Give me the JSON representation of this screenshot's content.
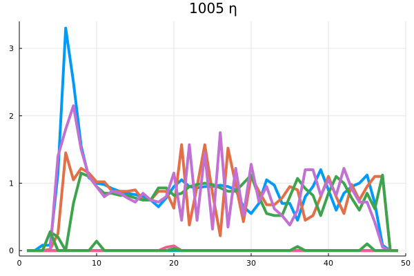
{
  "chart_data": {
    "type": "line",
    "title": "1005 η",
    "xlabel": "",
    "ylabel": "",
    "xlim": [
      0,
      50
    ],
    "ylim": [
      -0.08,
      3.4
    ],
    "x_ticks": [
      0,
      10,
      20,
      30,
      40,
      50
    ],
    "y_ticks": [
      0,
      1,
      2,
      3
    ],
    "grid": true,
    "legend": "none",
    "series": [
      {
        "color": "#009af9",
        "x": [
          1,
          2,
          3,
          4,
          5,
          6,
          7,
          8,
          9,
          10,
          11,
          12,
          13,
          14,
          15,
          16,
          17,
          18,
          19,
          20,
          21,
          22,
          23,
          24,
          25,
          26,
          27,
          28,
          29,
          30,
          31,
          32,
          33,
          34,
          35,
          36,
          37,
          38,
          39,
          40,
          41,
          42,
          43,
          44,
          45,
          46,
          47,
          48,
          49
        ],
        "values": [
          0,
          0,
          0.08,
          0.08,
          1.15,
          3.3,
          2.5,
          1.55,
          1.08,
          1.0,
          0.98,
          0.92,
          0.88,
          0.85,
          0.83,
          0.8,
          0.75,
          0.65,
          0.78,
          0.95,
          1.05,
          0.95,
          0.93,
          0.95,
          0.95,
          0.97,
          0.95,
          0.9,
          0.65,
          0.55,
          0.7,
          1.05,
          0.97,
          0.7,
          0.7,
          0.45,
          0.8,
          0.95,
          1.2,
          0.9,
          0.6,
          0.85,
          0.95,
          1.0,
          1.12,
          0.7,
          0.08,
          0,
          0
        ]
      },
      {
        "color": "#e26f46",
        "x": [
          1,
          2,
          3,
          4,
          5,
          6,
          7,
          8,
          9,
          10,
          11,
          12,
          13,
          14,
          15,
          16,
          17,
          18,
          19,
          20,
          21,
          22,
          23,
          24,
          25,
          26,
          27,
          28,
          29,
          30,
          31,
          32,
          33,
          34,
          35,
          36,
          37,
          38,
          39,
          40,
          41,
          42,
          43,
          44,
          45,
          46,
          47,
          48,
          49
        ],
        "values": [
          0,
          0,
          0,
          0.02,
          0.25,
          1.45,
          1.05,
          1.22,
          1.15,
          1.02,
          1.02,
          0.88,
          0.88,
          0.88,
          0.9,
          0.75,
          0.75,
          0.88,
          0.88,
          0.63,
          1.57,
          0.38,
          0.95,
          1.57,
          0.85,
          0.22,
          1.52,
          0.98,
          0.43,
          1.1,
          0.88,
          0.68,
          0.68,
          0.78,
          0.95,
          0.9,
          0.45,
          0.52,
          0.8,
          1.1,
          0.8,
          0.55,
          0.98,
          0.75,
          0.95,
          1.1,
          1.1,
          0,
          0
        ]
      },
      {
        "color": "#3da44d",
        "x": [
          1,
          2,
          3,
          4,
          5,
          6,
          7,
          8,
          9,
          10,
          11,
          12,
          13,
          14,
          15,
          16,
          17,
          18,
          19,
          20,
          21,
          22,
          23,
          24,
          25,
          26,
          27,
          28,
          29,
          30,
          31,
          32,
          33,
          34,
          35,
          36,
          37,
          38,
          39,
          40,
          41,
          42,
          43,
          44,
          45,
          46,
          47,
          48,
          49
        ],
        "values": [
          0,
          0,
          0,
          0.28,
          0.2,
          0.0,
          0.7,
          1.15,
          1.1,
          0.95,
          0.85,
          0.85,
          0.82,
          0.82,
          0.78,
          0.75,
          0.75,
          0.93,
          0.93,
          0.82,
          0.85,
          0.95,
          0.98,
          1.0,
          0.98,
          0.93,
          0.88,
          0.88,
          1.0,
          1.12,
          0.8,
          0.55,
          0.52,
          0.52,
          0.8,
          1.07,
          0.92,
          0.82,
          0.52,
          0.85,
          1.1,
          1.0,
          0.78,
          0.6,
          0.85,
          0.62,
          1.12,
          0,
          0
        ]
      },
      {
        "color": "#c271d2",
        "x": [
          1,
          2,
          3,
          4,
          5,
          6,
          7,
          8,
          9,
          10,
          11,
          12,
          13,
          14,
          15,
          16,
          17,
          18,
          19,
          20,
          21,
          22,
          23,
          24,
          25,
          26,
          27,
          28,
          29,
          30,
          31,
          32,
          33,
          34,
          35,
          36,
          37,
          38,
          39,
          40,
          41,
          42,
          43,
          44,
          45,
          46,
          47,
          48,
          49
        ],
        "values": [
          0,
          0,
          0,
          0,
          1.4,
          1.8,
          2.15,
          1.5,
          1.1,
          0.95,
          0.8,
          0.88,
          0.85,
          0.78,
          0.72,
          0.85,
          0.75,
          0.72,
          0.8,
          1.15,
          0.45,
          1.57,
          0.45,
          1.45,
          0.32,
          1.75,
          0.35,
          1.22,
          0.52,
          1.28,
          0.73,
          0.95,
          0.62,
          0.52,
          0.38,
          0.6,
          1.2,
          1.2,
          0.82,
          1.05,
          0.82,
          1.22,
          0.92,
          0.72,
          0.72,
          0.42,
          0.05,
          0,
          0
        ]
      },
      {
        "color": "#ac8d18",
        "x": [
          1,
          2,
          3,
          4,
          5,
          6,
          7,
          8,
          9,
          10,
          11,
          12,
          13,
          14,
          15,
          16,
          17,
          18,
          19,
          20,
          21,
          22,
          23,
          24,
          25,
          26,
          27,
          28,
          29,
          30,
          31,
          32,
          33,
          34,
          35,
          36,
          37,
          38,
          39,
          40,
          41,
          42,
          43,
          44,
          45,
          46,
          47,
          48,
          49
        ],
        "values": [
          0,
          0,
          0,
          0,
          0,
          0,
          0,
          0,
          0,
          0,
          0,
          0,
          0,
          0,
          0,
          0,
          0,
          0,
          0,
          0,
          0,
          0,
          0,
          0,
          0,
          0,
          0,
          0,
          0,
          0,
          0,
          0,
          0,
          0,
          0,
          0,
          0,
          0,
          0,
          0,
          0,
          0,
          0,
          0,
          0,
          0,
          0,
          0,
          0
        ]
      },
      {
        "color": "#00a9ad",
        "x": [
          1,
          2,
          3,
          4,
          5,
          6,
          7,
          8,
          9,
          10,
          11,
          12,
          13,
          14,
          15,
          16,
          17,
          18,
          19,
          20,
          21,
          22,
          23,
          24,
          25,
          26,
          27,
          28,
          29,
          30,
          31,
          32,
          33,
          34,
          35,
          36,
          37,
          38,
          39,
          40,
          41,
          42,
          43,
          44,
          45,
          46,
          47,
          48,
          49
        ],
        "values": [
          0,
          0,
          0,
          0,
          0,
          0,
          0,
          0,
          0,
          0,
          0,
          0,
          0,
          0,
          0,
          0,
          0,
          0,
          0,
          0,
          0,
          0,
          0,
          0,
          0,
          0,
          0,
          0,
          0,
          0,
          0,
          0,
          0,
          0,
          0,
          0,
          0,
          0,
          0,
          0,
          0,
          0,
          0,
          0,
          0,
          0,
          0,
          0,
          0
        ]
      },
      {
        "color": "#ed5d92",
        "x": [
          1,
          2,
          3,
          4,
          5,
          6,
          7,
          8,
          9,
          10,
          11,
          12,
          13,
          14,
          15,
          16,
          17,
          18,
          19,
          20,
          21,
          22,
          23,
          24,
          25,
          26,
          27,
          28,
          29,
          30,
          31,
          32,
          33,
          34,
          35,
          36,
          37,
          38,
          39,
          40,
          41,
          42,
          43,
          44,
          45,
          46,
          47,
          48,
          49
        ],
        "values": [
          0,
          0,
          0,
          0,
          0,
          0,
          0,
          0,
          0,
          0,
          0,
          0,
          0,
          0,
          0,
          0,
          0,
          0,
          0.05,
          0.07,
          0,
          0,
          0,
          0,
          0,
          0,
          0,
          0,
          0,
          0,
          0,
          0,
          0,
          0,
          0,
          0,
          0,
          0,
          0,
          0,
          0,
          0,
          0,
          0,
          0,
          0,
          0,
          0,
          0
        ]
      },
      {
        "color": "#3da44d",
        "x": [
          1,
          2,
          3,
          4,
          5,
          6,
          7,
          8,
          9,
          10,
          11,
          12,
          13,
          14,
          15,
          16,
          17,
          18,
          19,
          20,
          21,
          22,
          23,
          24,
          25,
          26,
          27,
          28,
          29,
          30,
          31,
          32,
          33,
          34,
          35,
          36,
          37,
          38,
          39,
          40,
          41,
          42,
          43,
          44,
          45,
          46,
          47,
          48,
          49
        ],
        "values": [
          0,
          0,
          0,
          0.28,
          0,
          0,
          0,
          0,
          0,
          0.14,
          0,
          0,
          0,
          0,
          0,
          0,
          0,
          0,
          0,
          0.03,
          0,
          0,
          0,
          0,
          0,
          0,
          0,
          0,
          0,
          0,
          0,
          0,
          0,
          0,
          0,
          0.06,
          0,
          0,
          0,
          0,
          0,
          0,
          0,
          0,
          0.1,
          0,
          0,
          0,
          0
        ]
      }
    ]
  }
}
